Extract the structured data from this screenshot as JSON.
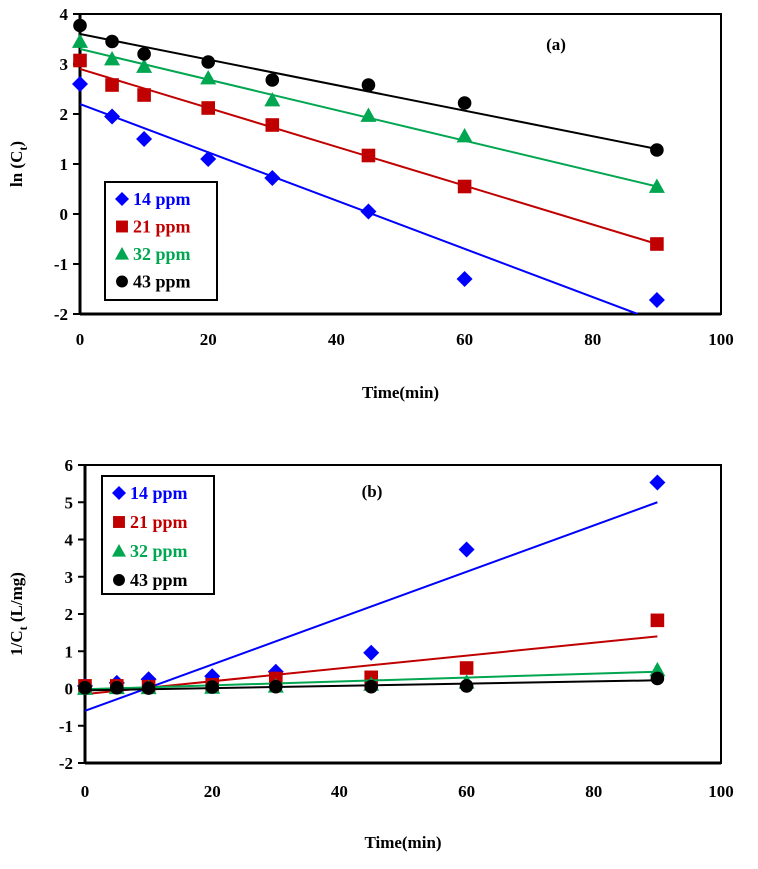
{
  "chart_data": [
    {
      "type": "scatter",
      "panel_label": "(a)",
      "title": "",
      "xlabel": "Time(min)",
      "ylabel_main": "ln (C",
      "ylabel_sub": "t",
      "ylabel_end": ")",
      "xlim": [
        0,
        100
      ],
      "ylim": [
        -2,
        4
      ],
      "xticks": [
        0,
        20,
        40,
        60,
        80,
        100
      ],
      "yticks": [
        -2,
        -1,
        0,
        1,
        2,
        3,
        4
      ],
      "grid": false,
      "legend_position": "bottom-left",
      "x": [
        0,
        5,
        10,
        20,
        30,
        45,
        60,
        90
      ],
      "series": [
        {
          "name": "14 ppm",
          "color": "#0000FF",
          "marker": "diamond",
          "values": [
            2.6,
            1.95,
            1.5,
            1.1,
            0.72,
            0.05,
            -1.3,
            -1.72
          ],
          "fit": {
            "x": [
              0,
              87
            ],
            "y": [
              2.2,
              -2.0
            ]
          }
        },
        {
          "name": "21 ppm",
          "color": "#C00000",
          "marker": "square",
          "values": [
            3.07,
            2.58,
            2.38,
            2.12,
            1.78,
            1.17,
            0.55,
            -0.6
          ],
          "fit": {
            "x": [
              0,
              90
            ],
            "y": [
              2.9,
              -0.6
            ]
          }
        },
        {
          "name": "32 ppm",
          "color": "#00A650",
          "marker": "triangle",
          "values": [
            3.45,
            3.1,
            2.95,
            2.72,
            2.28,
            1.97,
            1.56,
            0.55
          ],
          "fit": {
            "x": [
              0,
              90
            ],
            "y": [
              3.3,
              0.55
            ]
          }
        },
        {
          "name": "43 ppm",
          "color": "#000000",
          "marker": "circle",
          "values": [
            3.77,
            3.45,
            3.2,
            3.04,
            2.68,
            2.58,
            2.22,
            1.28
          ],
          "fit": {
            "x": [
              0,
              90
            ],
            "y": [
              3.6,
              1.3
            ]
          }
        }
      ]
    },
    {
      "type": "scatter",
      "panel_label": "(b)",
      "title": "",
      "xlabel": "Time(min)",
      "ylabel_main": "1/C",
      "ylabel_sub": "t",
      "ylabel_end": " (L/mg)",
      "xlim": [
        0,
        100
      ],
      "ylim": [
        -2,
        6
      ],
      "xticks": [
        0,
        20,
        40,
        60,
        80,
        100
      ],
      "yticks": [
        -2,
        -1,
        0,
        1,
        2,
        3,
        4,
        5,
        6
      ],
      "grid": false,
      "legend_position": "top-left",
      "x": [
        0,
        5,
        10,
        20,
        30,
        45,
        60,
        90
      ],
      "series": [
        {
          "name": "14 ppm",
          "color": "#0000FF",
          "marker": "diamond",
          "values": [
            0.07,
            0.15,
            0.25,
            0.33,
            0.45,
            0.96,
            3.73,
            5.53
          ],
          "fit": {
            "x": [
              0,
              90
            ],
            "y": [
              -0.6,
              5.0
            ]
          }
        },
        {
          "name": "21 ppm",
          "color": "#C00000",
          "marker": "square",
          "values": [
            0.07,
            0.07,
            0.05,
            0.1,
            0.27,
            0.3,
            0.55,
            1.83
          ],
          "fit": {
            "x": [
              0,
              90
            ],
            "y": [
              -0.15,
              1.4
            ]
          }
        },
        {
          "name": "32 ppm",
          "color": "#00A650",
          "marker": "triangle",
          "values": [
            0.0,
            0.02,
            0.02,
            0.03,
            0.06,
            0.11,
            0.17,
            0.5
          ],
          "fit": {
            "x": [
              0,
              90
            ],
            "y": [
              -0.02,
              0.45
            ]
          }
        },
        {
          "name": "43 ppm",
          "color": "#000000",
          "marker": "circle",
          "values": [
            0.02,
            0.02,
            0.01,
            0.04,
            0.05,
            0.05,
            0.07,
            0.27
          ],
          "fit": {
            "x": [
              0,
              90
            ],
            "y": [
              -0.05,
              0.22
            ]
          }
        }
      ]
    }
  ]
}
